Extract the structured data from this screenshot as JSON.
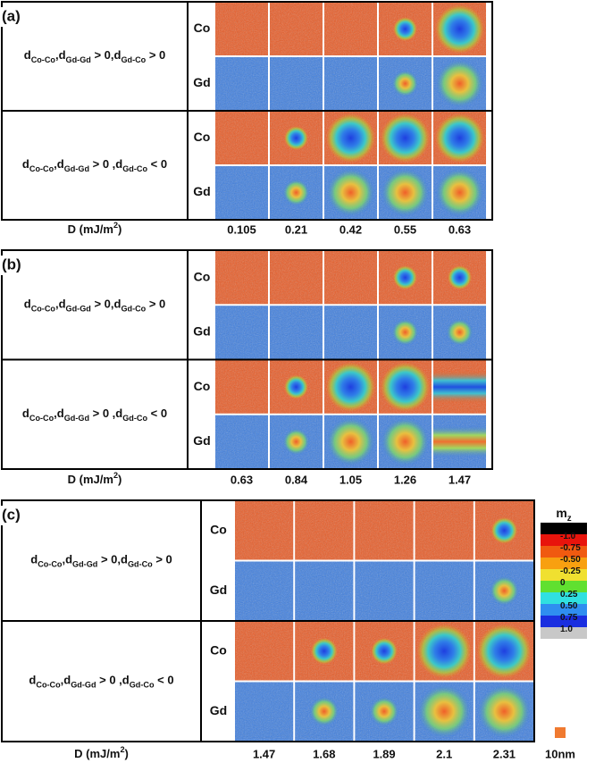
{
  "panels": [
    {
      "label": "(a)",
      "rows": [
        {
          "condition": [
            {
              "t": "d"
            },
            {
              "s": "Co-Co"
            },
            {
              "t": ",d"
            },
            {
              "s": "Gd-Gd"
            },
            {
              "t": "  > 0,d"
            },
            {
              "s": "Gd-Co"
            },
            {
              "t": " > 0"
            }
          ],
          "layers": [
            "Co",
            "Gd"
          ]
        },
        {
          "condition": [
            {
              "t": "d"
            },
            {
              "s": "Co-Co"
            },
            {
              "t": ",d"
            },
            {
              "s": "Gd-Gd"
            },
            {
              "t": " > 0 ,d"
            },
            {
              "s": "Gd-Co"
            },
            {
              "t": " < 0"
            }
          ],
          "layers": [
            "Co",
            "Gd"
          ]
        }
      ],
      "d_label": [
        {
          "t": "D (mJ/m"
        },
        {
          "p": "2"
        },
        {
          "t": ")"
        }
      ],
      "d_values": [
        "0.105",
        "0.21",
        "0.42",
        "0.55",
        "0.63"
      ]
    },
    {
      "label": "(b)",
      "rows": [
        {
          "condition": [
            {
              "t": "d"
            },
            {
              "s": "Co-Co"
            },
            {
              "t": ",d"
            },
            {
              "s": "Gd-Gd"
            },
            {
              "t": "  > 0,d"
            },
            {
              "s": "Gd-Co"
            },
            {
              "t": " > 0"
            }
          ],
          "layers": [
            "Co",
            "Gd"
          ]
        },
        {
          "condition": [
            {
              "t": "d"
            },
            {
              "s": "Co-Co"
            },
            {
              "t": ",d"
            },
            {
              "s": "Gd-Gd"
            },
            {
              "t": " > 0 ,d"
            },
            {
              "s": "Gd-Co"
            },
            {
              "t": " < 0"
            }
          ],
          "layers": [
            "Co",
            "Gd"
          ]
        }
      ],
      "d_label": [
        {
          "t": "D (mJ/m"
        },
        {
          "p": "2"
        },
        {
          "t": ")"
        }
      ],
      "d_values": [
        "0.63",
        "0.84",
        "1.05",
        "1.26",
        "1.47"
      ]
    },
    {
      "label": "(c)",
      "rows": [
        {
          "condition": [
            {
              "t": "d"
            },
            {
              "s": "Co-Co"
            },
            {
              "t": ",d"
            },
            {
              "s": "Gd-Gd"
            },
            {
              "t": "  > 0,d"
            },
            {
              "s": "Gd-Co"
            },
            {
              "t": " > 0"
            }
          ],
          "layers": [
            "Co",
            "Gd"
          ]
        },
        {
          "condition": [
            {
              "t": "d"
            },
            {
              "s": "Co-Co"
            },
            {
              "t": ",d"
            },
            {
              "s": "Gd-Gd"
            },
            {
              "t": " > 0 ,d"
            },
            {
              "s": "Gd-Co"
            },
            {
              "t": " < 0"
            }
          ],
          "layers": [
            "Co",
            "Gd"
          ]
        }
      ],
      "d_label": [
        {
          "t": "D (mJ/m"
        },
        {
          "p": "2"
        },
        {
          "t": ")"
        }
      ],
      "d_values": [
        "1.47",
        "1.68",
        "1.89",
        "2.1",
        "2.31"
      ]
    }
  ],
  "colorbar": {
    "title": [
      {
        "t": "m"
      },
      {
        "s": "z"
      }
    ],
    "labels": [
      "-1.0",
      "-0.75",
      "-0.50",
      "-0.25",
      "0",
      "0.25",
      "0.50",
      "0.75",
      "1.0"
    ]
  },
  "scale_bar": "10nm"
}
